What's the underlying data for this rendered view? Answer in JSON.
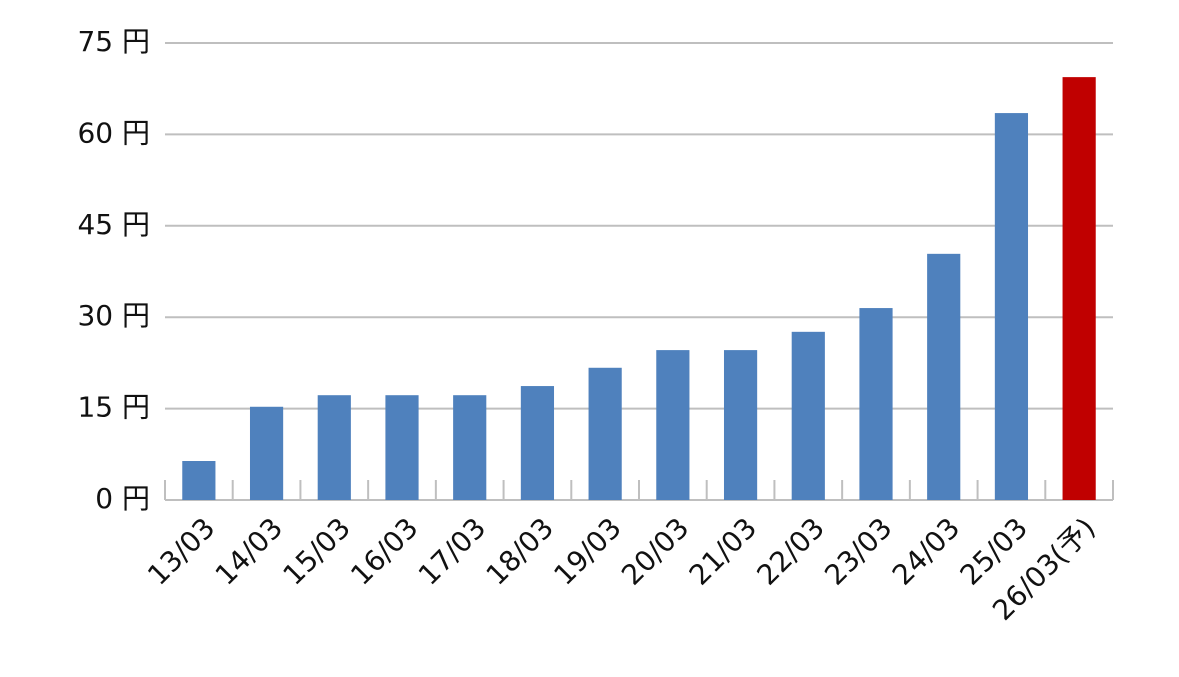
{
  "chart_data": {
    "type": "bar",
    "categories": [
      "13/03",
      "14/03",
      "15/03",
      "16/03",
      "17/03",
      "18/03",
      "19/03",
      "20/03",
      "21/03",
      "22/03",
      "23/03",
      "24/03",
      "25/03",
      "26/03(予)"
    ],
    "values": [
      6.4,
      15.3,
      17.2,
      17.2,
      17.2,
      18.7,
      21.7,
      24.6,
      24.6,
      27.6,
      31.5,
      40.4,
      63.5,
      69.4
    ],
    "colors": [
      "#4f81bd",
      "#4f81bd",
      "#4f81bd",
      "#4f81bd",
      "#4f81bd",
      "#4f81bd",
      "#4f81bd",
      "#4f81bd",
      "#4f81bd",
      "#4f81bd",
      "#4f81bd",
      "#4f81bd",
      "#4f81bd",
      "#c00000"
    ],
    "ylim": [
      0,
      75
    ],
    "yticks": [
      {
        "value": 0,
        "label": "0 円"
      },
      {
        "value": 15,
        "label": "15 円"
      },
      {
        "value": 30,
        "label": "30 円"
      },
      {
        "value": 45,
        "label": "45 円"
      },
      {
        "value": 60,
        "label": "60 円"
      },
      {
        "value": 75,
        "label": "75 円"
      }
    ],
    "grid": true
  }
}
